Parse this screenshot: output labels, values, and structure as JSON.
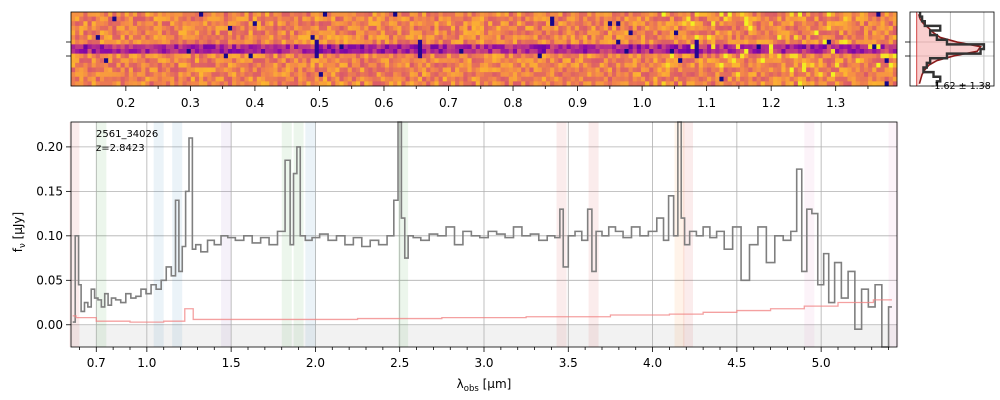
{
  "figure": {
    "object_label": "2561_34026",
    "redshift_label": "z=2.8423",
    "profile_label": "-1.62 ± 1.38"
  },
  "spectrum_2d": {
    "type": "heatmap",
    "colormap": "plasma",
    "rows": 16,
    "columns": 200,
    "x_tick_labels": [
      "0.2",
      "0.3",
      "0.4",
      "0.5",
      "0.6",
      "0.7",
      "0.8",
      "0.9",
      "1.0",
      "1.1",
      "1.2",
      "1.3"
    ],
    "x_ticks": [
      0.2,
      0.3,
      0.4,
      0.5,
      0.6,
      0.7,
      0.8,
      0.9,
      1.0,
      1.1,
      1.2,
      1.3
    ],
    "x_minor_ticks": [
      0.25,
      0.35,
      0.45,
      0.55,
      0.65,
      0.75,
      0.85,
      0.95,
      1.05,
      1.15,
      1.25,
      1.35
    ],
    "x_range": [
      0.115,
      1.395
    ],
    "trace_rows_from_top": [
      7,
      8
    ],
    "bright_columns_at": [
      0.49,
      0.65,
      1.08
    ]
  },
  "profile": {
    "y": [
      0,
      1,
      2,
      3,
      4,
      5,
      6,
      7,
      8,
      9,
      10,
      11,
      12,
      13,
      14,
      15
    ],
    "values": [
      0.05,
      0.08,
      0.12,
      0.35,
      0.2,
      0.3,
      0.45,
      1.0,
      0.95,
      0.45,
      0.2,
      0.15,
      0.1,
      0.25,
      0.35,
      0.3
    ],
    "model": [
      0.03,
      0.05,
      0.1,
      0.18,
      0.25,
      0.35,
      0.6,
      0.95,
      0.9,
      0.55,
      0.3,
      0.18,
      0.12,
      0.08,
      0.06,
      0.04
    ],
    "x_range": [
      -0.1,
      1.15
    ]
  },
  "chart_data": {
    "type": "line",
    "xlabel": "λobs [μm]",
    "ylabel": "fν [μJy]",
    "xlim": [
      0.55,
      5.45
    ],
    "ylim": [
      -0.025,
      0.228
    ],
    "x_ticks": [
      0.7,
      1.0,
      1.5,
      2.0,
      2.5,
      3.0,
      3.5,
      4.0,
      4.5,
      5.0
    ],
    "x_tick_labels": [
      "0.7",
      "1.0",
      "1.5",
      "2.0",
      "2.5",
      "3.0",
      "3.5",
      "4.0",
      "4.5",
      "5.0"
    ],
    "x_minor_ticks": [
      0.6,
      0.8,
      0.9,
      1.1,
      1.2,
      1.3,
      1.4,
      1.6,
      1.7,
      1.8,
      1.9,
      2.1,
      2.2,
      2.3,
      2.4,
      2.6,
      2.7,
      2.8,
      2.9,
      3.1,
      3.2,
      3.3,
      3.4,
      3.6,
      3.7,
      3.8,
      3.9,
      4.1,
      4.2,
      4.3,
      4.4,
      4.6,
      4.7,
      4.8,
      4.9,
      5.1,
      5.2,
      5.3,
      5.4
    ],
    "y_ticks": [
      0.0,
      0.05,
      0.1,
      0.15,
      0.2
    ],
    "y_tick_labels": [
      "0.00",
      "0.05",
      "0.10",
      "0.15",
      "0.20"
    ],
    "grid": true,
    "series": [
      {
        "role": "flux",
        "color": "#7f7f7f",
        "x": [
          0.56,
          0.59,
          0.6,
          0.62,
          0.64,
          0.66,
          0.68,
          0.7,
          0.72,
          0.74,
          0.76,
          0.78,
          0.8,
          0.83,
          0.86,
          0.89,
          0.92,
          0.95,
          0.98,
          1.01,
          1.04,
          1.07,
          1.1,
          1.13,
          1.16,
          1.18,
          1.2,
          1.22,
          1.24,
          1.26,
          1.28,
          1.3,
          1.34,
          1.38,
          1.42,
          1.46,
          1.5,
          1.55,
          1.6,
          1.65,
          1.7,
          1.75,
          1.8,
          1.84,
          1.86,
          1.88,
          1.9,
          1.92,
          1.96,
          2.0,
          2.05,
          2.1,
          2.15,
          2.2,
          2.25,
          2.3,
          2.35,
          2.4,
          2.45,
          2.48,
          2.5,
          2.52,
          2.54,
          2.56,
          2.6,
          2.65,
          2.7,
          2.75,
          2.8,
          2.85,
          2.9,
          2.95,
          3.0,
          3.05,
          3.1,
          3.15,
          3.2,
          3.25,
          3.3,
          3.35,
          3.4,
          3.44,
          3.46,
          3.48,
          3.52,
          3.56,
          3.6,
          3.63,
          3.65,
          3.68,
          3.72,
          3.76,
          3.8,
          3.85,
          3.9,
          3.95,
          4.0,
          4.05,
          4.08,
          4.11,
          4.14,
          4.16,
          4.18,
          4.2,
          4.24,
          4.28,
          4.32,
          4.36,
          4.4,
          4.45,
          4.5,
          4.55,
          4.6,
          4.65,
          4.7,
          4.75,
          4.8,
          4.84,
          4.87,
          4.9,
          4.93,
          4.96,
          5.0,
          5.03,
          5.06,
          5.1,
          5.14,
          5.18,
          5.22,
          5.26,
          5.3,
          5.34,
          5.38,
          5.42
        ],
        "y": [
          0.003,
          0.1,
          0.045,
          0.015,
          0.025,
          0.02,
          0.04,
          0.03,
          0.028,
          0.02,
          0.035,
          0.022,
          0.03,
          0.028,
          0.025,
          0.035,
          0.03,
          0.032,
          0.04,
          0.035,
          0.045,
          0.04,
          0.05,
          0.065,
          0.055,
          0.14,
          0.06,
          0.088,
          0.15,
          0.21,
          0.085,
          0.09,
          0.082,
          0.095,
          0.09,
          0.1,
          0.098,
          0.095,
          0.1,
          0.092,
          0.098,
          0.09,
          0.105,
          0.185,
          0.09,
          0.17,
          0.2,
          0.1,
          0.095,
          0.098,
          0.102,
          0.095,
          0.1,
          0.09,
          0.098,
          0.088,
          0.095,
          0.09,
          0.1,
          0.14,
          0.23,
          0.12,
          0.075,
          0.1,
          0.098,
          0.095,
          0.102,
          0.1,
          0.11,
          0.09,
          0.105,
          0.1,
          0.098,
          0.105,
          0.102,
          0.098,
          0.11,
          0.1,
          0.102,
          0.095,
          0.1,
          0.098,
          0.13,
          0.065,
          0.1,
          0.105,
          0.095,
          0.13,
          0.06,
          0.105,
          0.1,
          0.11,
          0.105,
          0.098,
          0.11,
          0.1,
          0.105,
          0.12,
          0.095,
          0.145,
          0.1,
          0.228,
          0.12,
          0.09,
          0.105,
          0.1,
          0.11,
          0.098,
          0.105,
          0.085,
          0.11,
          0.05,
          0.09,
          0.11,
          0.07,
          0.1,
          0.095,
          0.105,
          0.175,
          0.06,
          0.13,
          0.125,
          0.045,
          0.08,
          0.025,
          0.07,
          0.03,
          0.06,
          -0.005,
          0.04,
          0.02,
          0.045,
          -0.025,
          0.02
        ]
      },
      {
        "role": "uncertainty",
        "color": "#f08080",
        "x": [
          0.56,
          0.6,
          0.8,
          1.0,
          1.2,
          1.25,
          1.3,
          1.5,
          1.8,
          2.0,
          2.5,
          3.0,
          3.5,
          4.0,
          4.2,
          4.4,
          4.6,
          4.8,
          5.0,
          5.2,
          5.42
        ],
        "y": [
          0.01,
          0.008,
          0.004,
          0.003,
          0.004,
          0.018,
          0.006,
          0.006,
          0.006,
          0.006,
          0.007,
          0.008,
          0.009,
          0.011,
          0.012,
          0.014,
          0.016,
          0.018,
          0.021,
          0.025,
          0.028
        ]
      }
    ],
    "line_bands": [
      {
        "x": 0.57,
        "color": "#d62728"
      },
      {
        "x": 0.73,
        "color": "#2ca02c"
      },
      {
        "x": 1.07,
        "color": "#1f77b4"
      },
      {
        "x": 1.18,
        "color": "#1f77b4"
      },
      {
        "x": 1.47,
        "color": "#9467bd"
      },
      {
        "x": 1.83,
        "color": "#2ca02c"
      },
      {
        "x": 1.9,
        "color": "#2ca02c"
      },
      {
        "x": 1.97,
        "color": "#1f77b4"
      },
      {
        "x": 2.52,
        "color": "#2ca02c"
      },
      {
        "x": 3.46,
        "color": "#d62728"
      },
      {
        "x": 3.65,
        "color": "#d62728"
      },
      {
        "x": 4.16,
        "color": "#ff7f0e"
      },
      {
        "x": 4.21,
        "color": "#d62728"
      },
      {
        "x": 4.93,
        "color": "#e377c2"
      },
      {
        "x": 5.43,
        "color": "#e377c2"
      }
    ]
  }
}
